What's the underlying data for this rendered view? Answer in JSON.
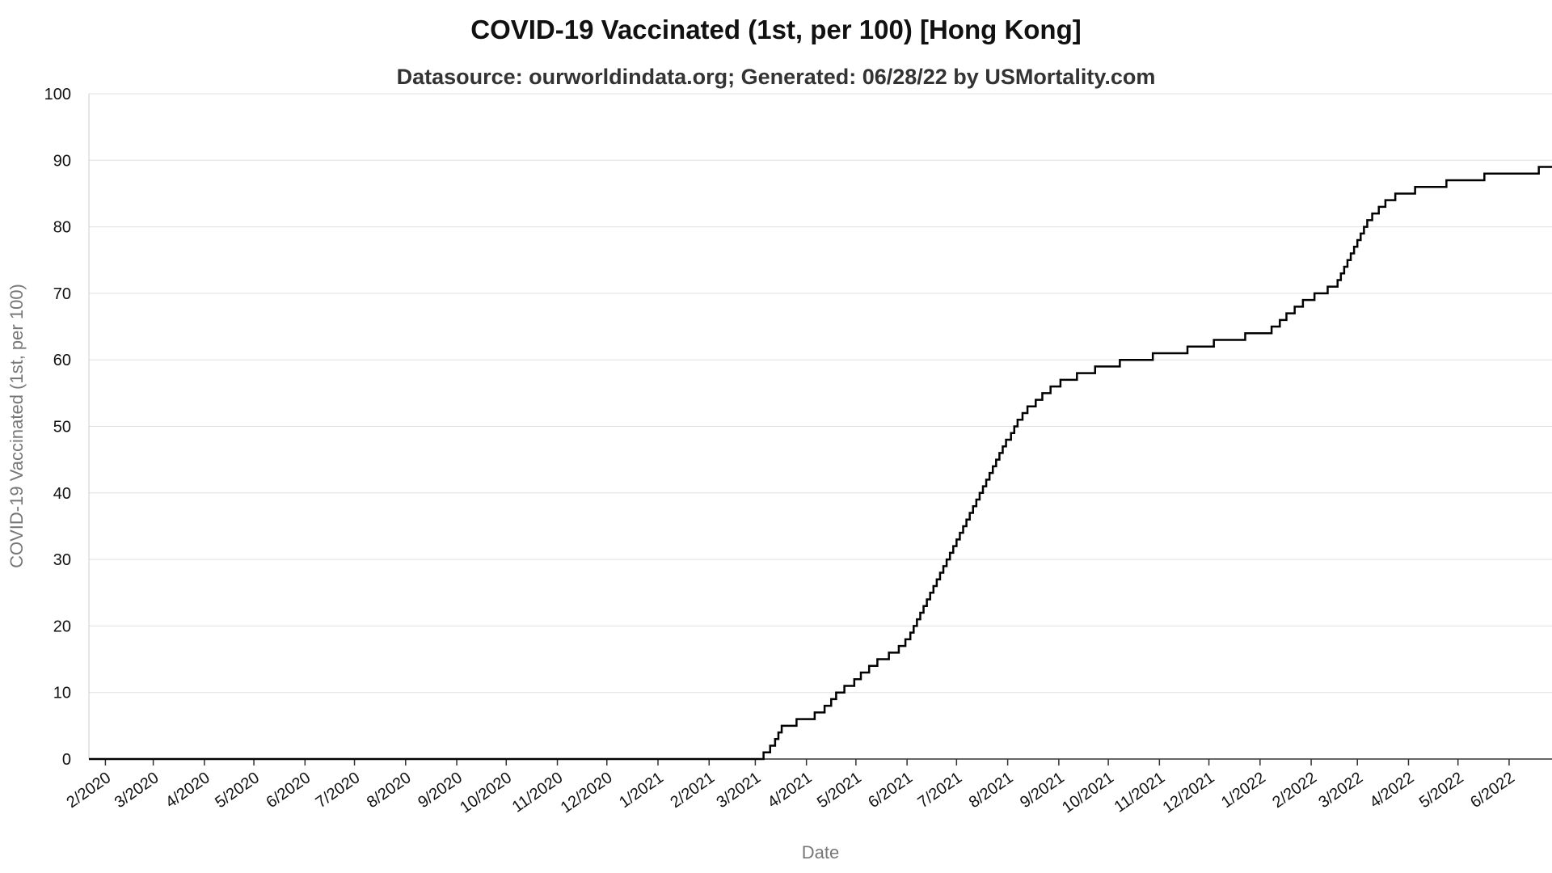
{
  "chart_data": {
    "type": "line",
    "title": "COVID-19 Vaccinated (1st, per 100) [Hong Kong]",
    "subtitle": "Datasource: ourworldindata.org; Generated: 06/28/22 by USMortality.com",
    "xlabel": "Date",
    "ylabel": "COVID-19 Vaccinated (1st, per 100)",
    "ylim": [
      0,
      100
    ],
    "xlim": [
      "2020-01-22",
      "2022-06-27"
    ],
    "yticks": [
      0,
      10,
      20,
      30,
      40,
      50,
      60,
      70,
      80,
      90,
      100
    ],
    "xticks": [
      {
        "date": "2020-02-01",
        "label": "2/2020"
      },
      {
        "date": "2020-03-01",
        "label": "3/2020"
      },
      {
        "date": "2020-04-01",
        "label": "4/2020"
      },
      {
        "date": "2020-05-01",
        "label": "5/2020"
      },
      {
        "date": "2020-06-01",
        "label": "6/2020"
      },
      {
        "date": "2020-07-01",
        "label": "7/2020"
      },
      {
        "date": "2020-08-01",
        "label": "8/2020"
      },
      {
        "date": "2020-09-01",
        "label": "9/2020"
      },
      {
        "date": "2020-10-01",
        "label": "10/2020"
      },
      {
        "date": "2020-11-01",
        "label": "11/2020"
      },
      {
        "date": "2020-12-01",
        "label": "12/2020"
      },
      {
        "date": "2021-01-01",
        "label": "1/2021"
      },
      {
        "date": "2021-02-01",
        "label": "2/2021"
      },
      {
        "date": "2021-03-01",
        "label": "3/2021"
      },
      {
        "date": "2021-04-01",
        "label": "4/2021"
      },
      {
        "date": "2021-05-01",
        "label": "5/2021"
      },
      {
        "date": "2021-06-01",
        "label": "6/2021"
      },
      {
        "date": "2021-07-01",
        "label": "7/2021"
      },
      {
        "date": "2021-08-01",
        "label": "8/2021"
      },
      {
        "date": "2021-09-01",
        "label": "9/2021"
      },
      {
        "date": "2021-10-01",
        "label": "10/2021"
      },
      {
        "date": "2021-11-01",
        "label": "11/2021"
      },
      {
        "date": "2021-12-01",
        "label": "12/2021"
      },
      {
        "date": "2022-01-01",
        "label": "1/2022"
      },
      {
        "date": "2022-02-01",
        "label": "2/2022"
      },
      {
        "date": "2022-03-01",
        "label": "3/2022"
      },
      {
        "date": "2022-04-01",
        "label": "4/2022"
      },
      {
        "date": "2022-05-01",
        "label": "5/2022"
      },
      {
        "date": "2022-06-01",
        "label": "6/2022"
      }
    ],
    "grid": true,
    "line_color": "#000000",
    "step": true,
    "series": [
      {
        "points": [
          [
            "2020-01-22",
            0
          ],
          [
            "2021-03-01",
            0
          ],
          [
            "2021-03-06",
            1
          ],
          [
            "2021-03-10",
            2
          ],
          [
            "2021-03-13",
            3
          ],
          [
            "2021-03-15",
            4
          ],
          [
            "2021-03-17",
            5
          ],
          [
            "2021-03-26",
            6
          ],
          [
            "2021-04-06",
            7
          ],
          [
            "2021-04-12",
            8
          ],
          [
            "2021-04-16",
            9
          ],
          [
            "2021-04-19",
            10
          ],
          [
            "2021-04-24",
            11
          ],
          [
            "2021-04-30",
            12
          ],
          [
            "2021-05-04",
            13
          ],
          [
            "2021-05-09",
            14
          ],
          [
            "2021-05-14",
            15
          ],
          [
            "2021-05-21",
            16
          ],
          [
            "2021-05-27",
            17
          ],
          [
            "2021-05-31",
            18
          ],
          [
            "2021-06-03",
            19
          ],
          [
            "2021-06-05",
            20
          ],
          [
            "2021-06-07",
            21
          ],
          [
            "2021-06-09",
            22
          ],
          [
            "2021-06-11",
            23
          ],
          [
            "2021-06-13",
            24
          ],
          [
            "2021-06-15",
            25
          ],
          [
            "2021-06-17",
            26
          ],
          [
            "2021-06-19",
            27
          ],
          [
            "2021-06-21",
            28
          ],
          [
            "2021-06-23",
            29
          ],
          [
            "2021-06-25",
            30
          ],
          [
            "2021-06-27",
            31
          ],
          [
            "2021-06-29",
            32
          ],
          [
            "2021-07-01",
            33
          ],
          [
            "2021-07-03",
            34
          ],
          [
            "2021-07-05",
            35
          ],
          [
            "2021-07-07",
            36
          ],
          [
            "2021-07-09",
            37
          ],
          [
            "2021-07-11",
            38
          ],
          [
            "2021-07-13",
            39
          ],
          [
            "2021-07-15",
            40
          ],
          [
            "2021-07-17",
            41
          ],
          [
            "2021-07-19",
            42
          ],
          [
            "2021-07-21",
            43
          ],
          [
            "2021-07-23",
            44
          ],
          [
            "2021-07-25",
            45
          ],
          [
            "2021-07-27",
            46
          ],
          [
            "2021-07-29",
            47
          ],
          [
            "2021-07-31",
            48
          ],
          [
            "2021-08-03",
            49
          ],
          [
            "2021-08-05",
            50
          ],
          [
            "2021-08-07",
            51
          ],
          [
            "2021-08-10",
            52
          ],
          [
            "2021-08-13",
            53
          ],
          [
            "2021-08-18",
            54
          ],
          [
            "2021-08-22",
            55
          ],
          [
            "2021-08-27",
            56
          ],
          [
            "2021-09-02",
            57
          ],
          [
            "2021-09-12",
            58
          ],
          [
            "2021-09-23",
            59
          ],
          [
            "2021-10-08",
            60
          ],
          [
            "2021-10-28",
            61
          ],
          [
            "2021-11-18",
            62
          ],
          [
            "2021-12-04",
            63
          ],
          [
            "2021-12-23",
            64
          ],
          [
            "2022-01-08",
            65
          ],
          [
            "2022-01-13",
            66
          ],
          [
            "2022-01-17",
            67
          ],
          [
            "2022-01-22",
            68
          ],
          [
            "2022-01-27",
            69
          ],
          [
            "2022-02-03",
            70
          ],
          [
            "2022-02-11",
            71
          ],
          [
            "2022-02-17",
            72
          ],
          [
            "2022-02-19",
            73
          ],
          [
            "2022-02-21",
            74
          ],
          [
            "2022-02-23",
            75
          ],
          [
            "2022-02-25",
            76
          ],
          [
            "2022-02-27",
            77
          ],
          [
            "2022-03-01",
            78
          ],
          [
            "2022-03-03",
            79
          ],
          [
            "2022-03-05",
            80
          ],
          [
            "2022-03-07",
            81
          ],
          [
            "2022-03-10",
            82
          ],
          [
            "2022-03-14",
            83
          ],
          [
            "2022-03-18",
            84
          ],
          [
            "2022-03-24",
            85
          ],
          [
            "2022-04-05",
            86
          ],
          [
            "2022-04-24",
            87
          ],
          [
            "2022-05-17",
            88
          ],
          [
            "2022-06-19",
            89
          ],
          [
            "2022-06-27",
            89
          ]
        ]
      }
    ]
  }
}
